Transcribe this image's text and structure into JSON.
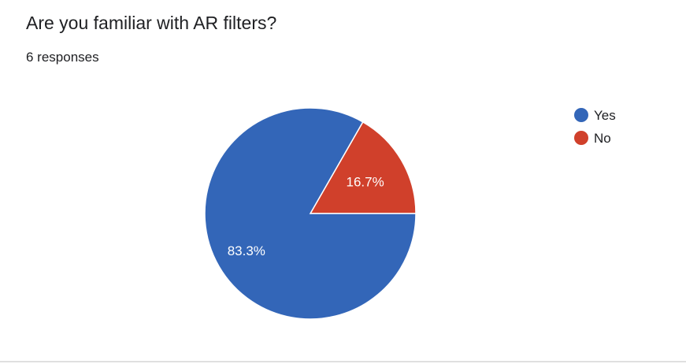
{
  "question": {
    "title": "Are you familiar with AR filters?",
    "responses": "6 responses"
  },
  "chart_data": {
    "type": "pie",
    "categories": [
      "Yes",
      "No"
    ],
    "values": [
      83.3,
      16.7
    ],
    "labels": [
      "83.3%",
      "16.7%"
    ],
    "colors": [
      "#3366b8",
      "#d0402b"
    ],
    "legend_position": "right"
  }
}
